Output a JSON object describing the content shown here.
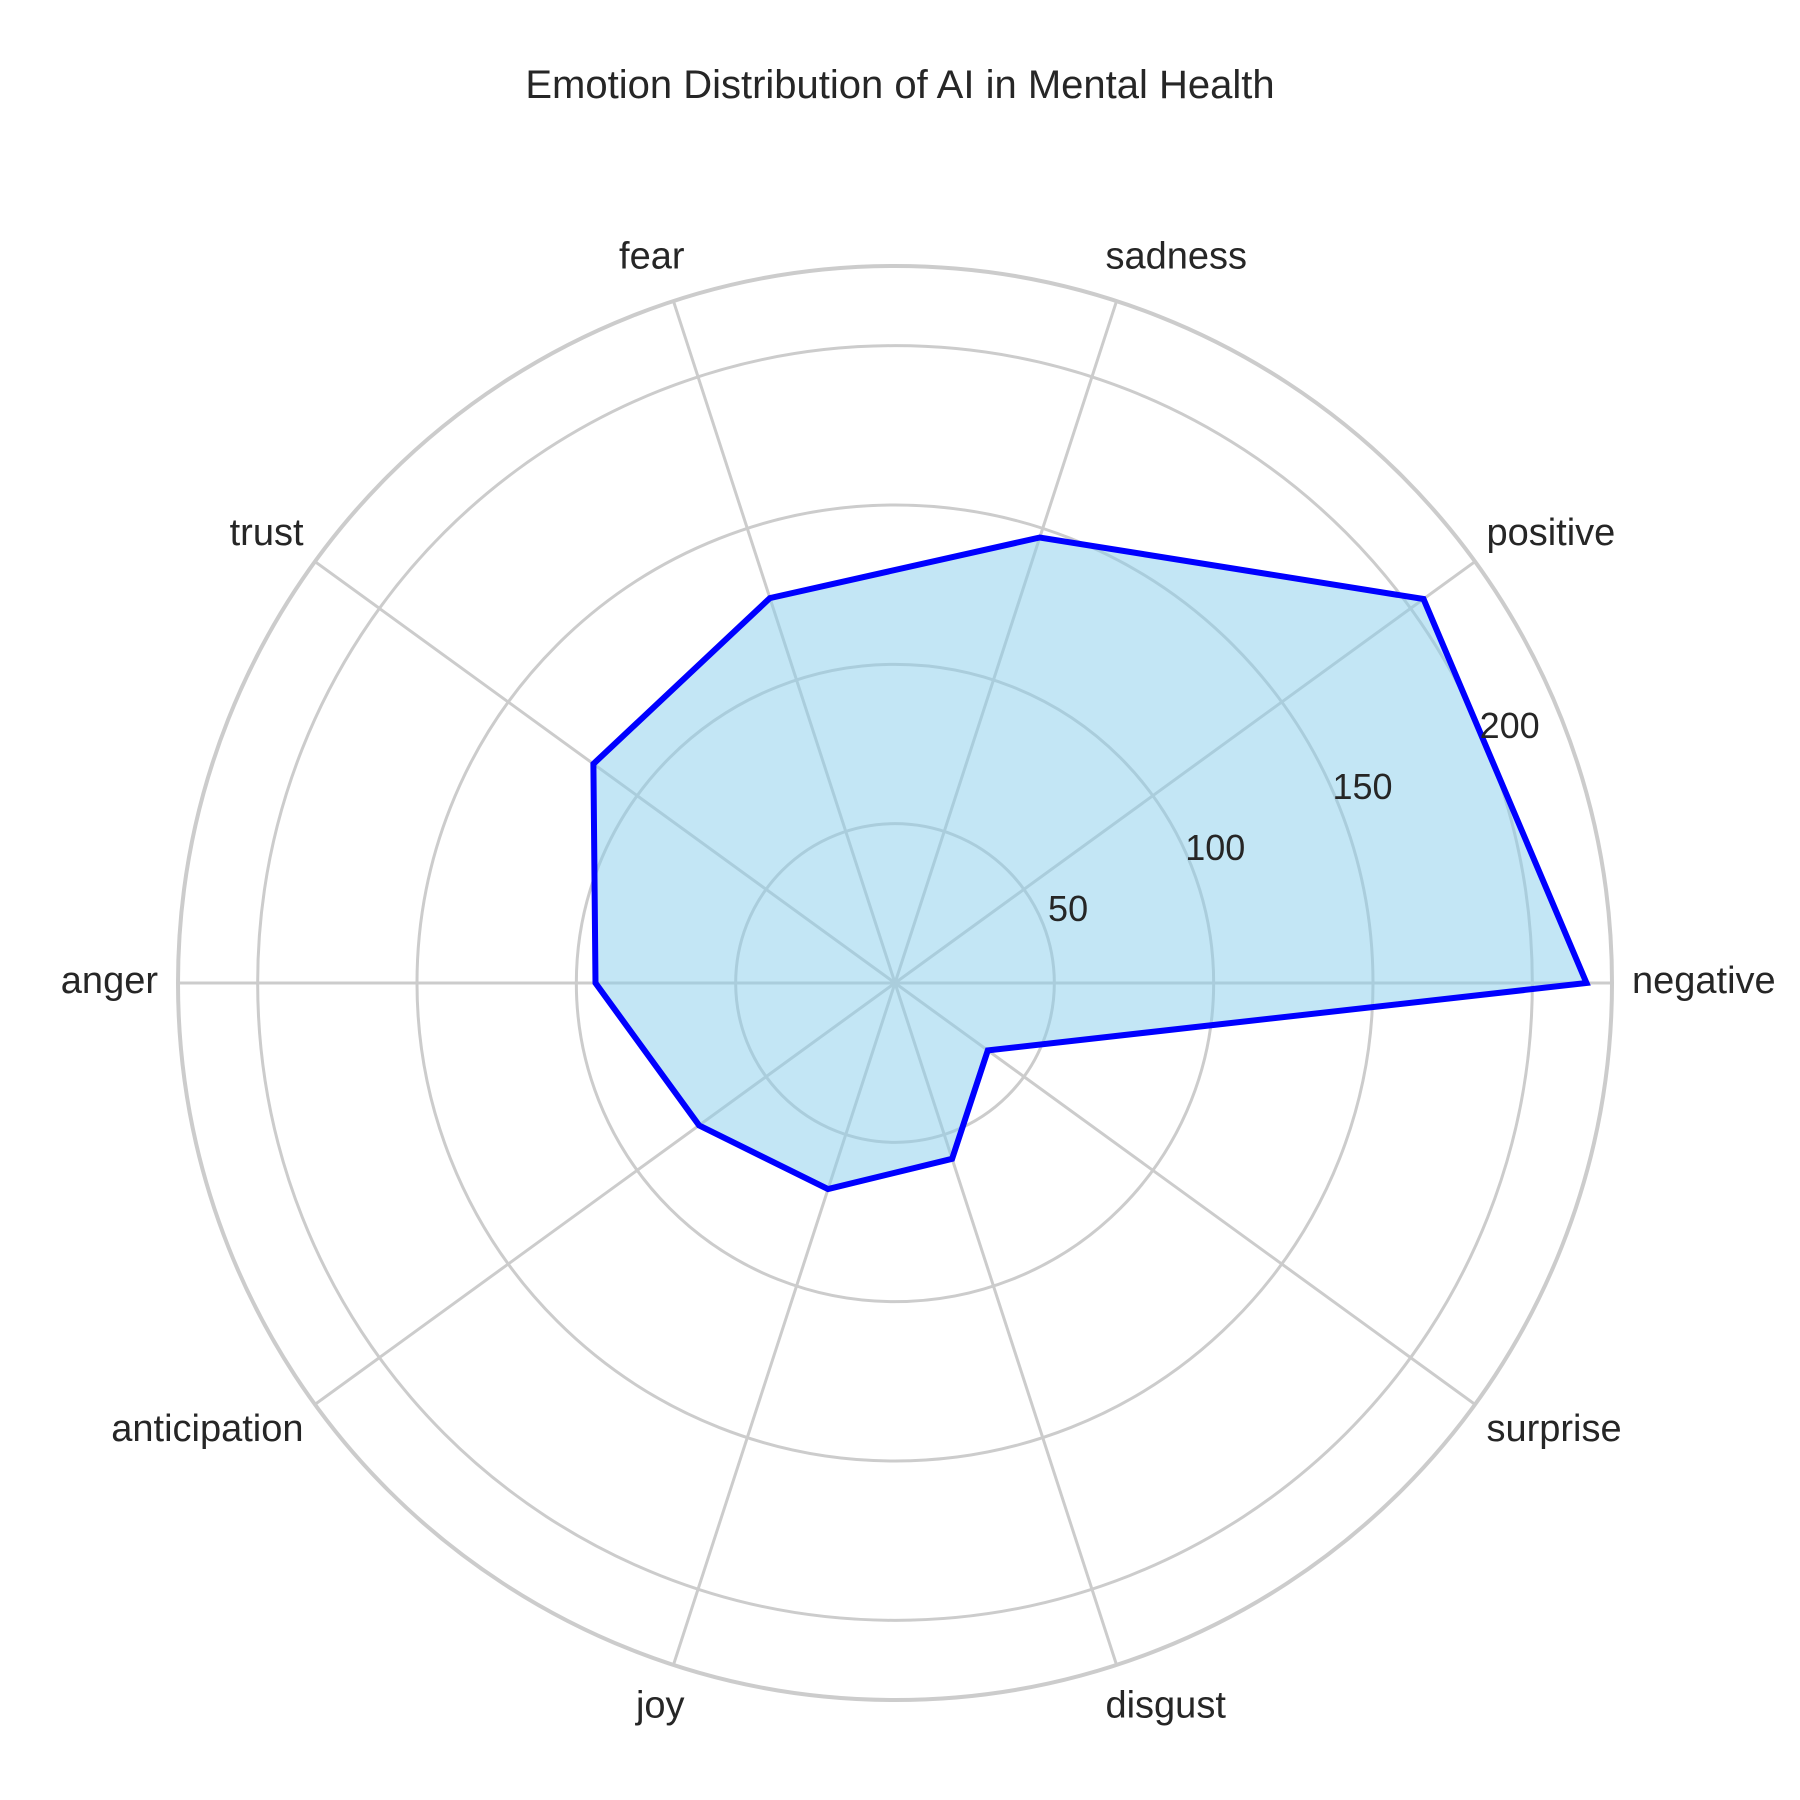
{
  "chart_data": {
    "type": "radar",
    "title": "Emotion Distribution of AI in Mental Health",
    "categories": [
      "negative",
      "positive",
      "sadness",
      "fear",
      "trust",
      "anger",
      "anticipation",
      "joy",
      "disgust",
      "surprise"
    ],
    "values": [
      217,
      205,
      147,
      127,
      117,
      94,
      76,
      68,
      58,
      36
    ],
    "r_ticks": [
      50,
      100,
      150,
      200
    ],
    "r_tick_labels": [
      "50",
      "100",
      "150",
      "200"
    ],
    "r_max": 225,
    "grid": true,
    "colors": {
      "line": "#0000ff",
      "fill": "#87ceeb",
      "grid": "#cccccc",
      "text": "#262626"
    }
  }
}
